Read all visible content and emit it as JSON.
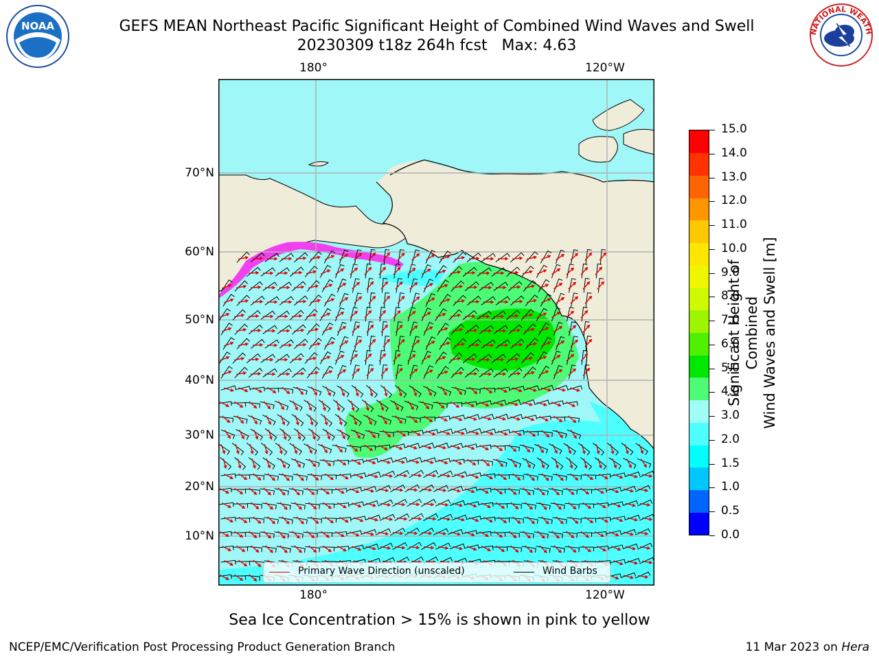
{
  "title": {
    "line1": "GEFS MEAN Northeast Pacific Significant Height of Combined Wind Waves and Swell",
    "line2": "20230309 t18z 264h fcst   Max: 4.63"
  },
  "logos": {
    "left": {
      "name": "noaa-logo",
      "text": "NOAA"
    },
    "right": {
      "name": "nws-logo",
      "text": "NATIONAL WEATHER SERVICE"
    }
  },
  "map": {
    "lon_labels_top": [
      "180°",
      "120°W"
    ],
    "lon_labels_bottom": [
      "180°",
      "120°W"
    ],
    "lat_labels": [
      "70°N",
      "60°N",
      "50°N",
      "40°N",
      "30°N",
      "20°N",
      "10°N"
    ],
    "legend": {
      "wave_label": "Primary Wave Direction (unscaled)",
      "wind_label": "Wind Barbs",
      "wave_color": "#e00000",
      "wind_color": "#000000"
    },
    "colors": {
      "land": "#efedd9",
      "ocean_low": "#9ff7f7",
      "ocean_mid": "#4dffff",
      "ocean_high": "#4dfb77",
      "core": "#00e800"
    }
  },
  "colorbar": {
    "title_line1": "Significant Height of Combined",
    "title_line2": "Wind Waves and Swell [m]",
    "ticks": [
      "15.0",
      "14.0",
      "13.0",
      "12.0",
      "11.0",
      "10.0",
      "9.0",
      "8.0",
      "7.0",
      "6.0",
      "5.0",
      "4.0",
      "3.0",
      "2.0",
      "1.5",
      "1.0",
      "0.5",
      "0.0"
    ],
    "colors_bottom_to_top": [
      "#0000ff",
      "#0065ff",
      "#00c8ff",
      "#00ffff",
      "#4dffff",
      "#9ffff7",
      "#4dfb77",
      "#00e800",
      "#4ff000",
      "#9ef500",
      "#cdfa00",
      "#f0f500",
      "#ffe600",
      "#ffc800",
      "#ff9600",
      "#ff6400",
      "#ff3200",
      "#ff0000"
    ]
  },
  "footer": {
    "note": "Sea Ice Concentration > 15% is shown in pink to yellow",
    "left": "NCEP/EMC/Verification Post Processing Product Generation Branch",
    "right_date": "11 Mar 2023 on ",
    "right_host": "Hera"
  }
}
